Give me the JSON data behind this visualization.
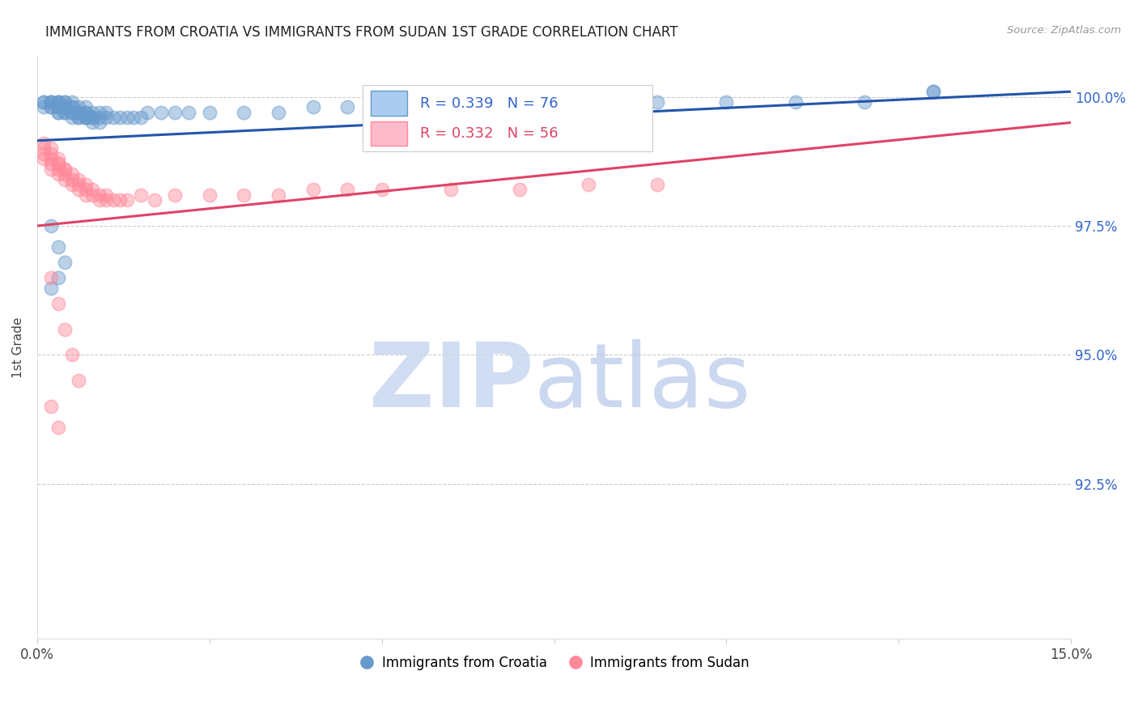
{
  "title": "IMMIGRANTS FROM CROATIA VS IMMIGRANTS FROM SUDAN 1ST GRADE CORRELATION CHART",
  "source": "Source: ZipAtlas.com",
  "ylabel": "1st Grade",
  "xlim": [
    0.0,
    0.15
  ],
  "ylim": [
    0.895,
    1.008
  ],
  "croatia_color": "#6699CC",
  "sudan_color": "#FF8899",
  "croatia_line_color": "#2255AA",
  "sudan_line_color": "#DD4466",
  "r_croatia": 0.339,
  "n_croatia": 76,
  "r_sudan": 0.332,
  "n_sudan": 56,
  "legend_label_croatia": "Immigrants from Croatia",
  "legend_label_sudan": "Immigrants from Sudan",
  "watermark_zip": "ZIP",
  "watermark_atlas": "atlas",
  "yticks": [
    0.925,
    0.95,
    0.975,
    1.0
  ],
  "ytick_labels": [
    "92.5%",
    "95.0%",
    "97.5%",
    "100.0%"
  ],
  "xtick_labels_left": "0.0%",
  "xtick_labels_right": "15.0%",
  "croatia_x": [
    0.001,
    0.001,
    0.001,
    0.002,
    0.002,
    0.002,
    0.002,
    0.002,
    0.003,
    0.003,
    0.003,
    0.003,
    0.003,
    0.003,
    0.003,
    0.004,
    0.004,
    0.004,
    0.004,
    0.004,
    0.004,
    0.005,
    0.005,
    0.005,
    0.005,
    0.005,
    0.005,
    0.006,
    0.006,
    0.006,
    0.006,
    0.006,
    0.007,
    0.007,
    0.007,
    0.007,
    0.007,
    0.007,
    0.008,
    0.008,
    0.008,
    0.008,
    0.009,
    0.009,
    0.009,
    0.01,
    0.01,
    0.011,
    0.012,
    0.013,
    0.014,
    0.015,
    0.016,
    0.018,
    0.02,
    0.022,
    0.025,
    0.03,
    0.035,
    0.04,
    0.045,
    0.05,
    0.06,
    0.07,
    0.08,
    0.09,
    0.1,
    0.11,
    0.12,
    0.13,
    0.13,
    0.002,
    0.003,
    0.004,
    0.003,
    0.002
  ],
  "croatia_y": [
    0.998,
    0.999,
    0.999,
    0.998,
    0.999,
    0.999,
    0.999,
    0.998,
    0.997,
    0.998,
    0.999,
    0.999,
    0.998,
    0.997,
    0.999,
    0.997,
    0.998,
    0.999,
    0.998,
    0.997,
    0.999,
    0.996,
    0.997,
    0.998,
    0.999,
    0.997,
    0.998,
    0.996,
    0.997,
    0.998,
    0.996,
    0.997,
    0.996,
    0.997,
    0.998,
    0.996,
    0.997,
    0.996,
    0.996,
    0.997,
    0.995,
    0.996,
    0.995,
    0.996,
    0.997,
    0.996,
    0.997,
    0.996,
    0.996,
    0.996,
    0.996,
    0.996,
    0.997,
    0.997,
    0.997,
    0.997,
    0.997,
    0.997,
    0.997,
    0.998,
    0.998,
    0.998,
    0.998,
    0.998,
    0.999,
    0.999,
    0.999,
    0.999,
    0.999,
    1.001,
    1.001,
    0.975,
    0.971,
    0.968,
    0.965,
    0.963
  ],
  "sudan_x": [
    0.001,
    0.001,
    0.001,
    0.001,
    0.002,
    0.002,
    0.002,
    0.002,
    0.002,
    0.003,
    0.003,
    0.003,
    0.003,
    0.003,
    0.004,
    0.004,
    0.004,
    0.004,
    0.005,
    0.005,
    0.005,
    0.006,
    0.006,
    0.006,
    0.007,
    0.007,
    0.007,
    0.008,
    0.008,
    0.009,
    0.009,
    0.01,
    0.01,
    0.011,
    0.012,
    0.013,
    0.015,
    0.017,
    0.02,
    0.025,
    0.03,
    0.035,
    0.04,
    0.045,
    0.05,
    0.06,
    0.07,
    0.08,
    0.09,
    0.002,
    0.003,
    0.004,
    0.005,
    0.006,
    0.002,
    0.003
  ],
  "sudan_y": [
    0.989,
    0.99,
    0.991,
    0.988,
    0.988,
    0.989,
    0.99,
    0.987,
    0.986,
    0.988,
    0.987,
    0.986,
    0.985,
    0.987,
    0.986,
    0.985,
    0.984,
    0.986,
    0.985,
    0.984,
    0.983,
    0.984,
    0.983,
    0.982,
    0.983,
    0.982,
    0.981,
    0.982,
    0.981,
    0.981,
    0.98,
    0.981,
    0.98,
    0.98,
    0.98,
    0.98,
    0.981,
    0.98,
    0.981,
    0.981,
    0.981,
    0.981,
    0.982,
    0.982,
    0.982,
    0.982,
    0.982,
    0.983,
    0.983,
    0.965,
    0.96,
    0.955,
    0.95,
    0.945,
    0.94,
    0.936
  ]
}
